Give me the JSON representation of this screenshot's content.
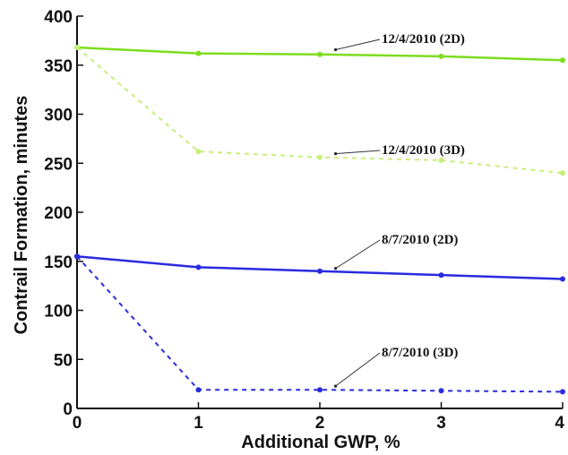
{
  "chart_data": {
    "type": "line",
    "title": "",
    "xlabel": "Additional GWP, %",
    "ylabel": "Contrail Formation, minutes",
    "xlim": [
      0,
      4
    ],
    "ylim": [
      0,
      400
    ],
    "x_ticks": [
      "0",
      "1",
      "2",
      "3",
      "4"
    ],
    "y_ticks": [
      "0",
      "50",
      "100",
      "150",
      "200",
      "250",
      "300",
      "350",
      "400"
    ],
    "grid": false,
    "legend": "none",
    "series": [
      {
        "name": "12/4/2010 (2D)",
        "color": "#7ddc1f",
        "style": "solid",
        "x": [
          0,
          1,
          2,
          3,
          4
        ],
        "y": [
          368,
          362,
          361,
          359,
          355
        ]
      },
      {
        "name": "12/4/2010 (3D)",
        "color": "#c6ef7a",
        "style": "dashed",
        "x": [
          0,
          1,
          2,
          3,
          4
        ],
        "y": [
          368,
          262,
          256,
          253,
          240
        ]
      },
      {
        "name": "8/7/2010 (2D)",
        "color": "#2a2ae0",
        "style": "solid",
        "x": [
          0,
          1,
          2,
          3,
          4
        ],
        "y": [
          155,
          144,
          140,
          136,
          132
        ]
      },
      {
        "name": "8/7/2010 (3D)",
        "color": "#2a2ae0",
        "style": "dashed",
        "x": [
          0,
          1,
          2,
          3,
          4
        ],
        "y": [
          155,
          19,
          19,
          18,
          17
        ]
      }
    ],
    "annotations": [
      {
        "text": "12/4/2010 (2D)",
        "series": 0,
        "x": 2.1,
        "y": 363
      },
      {
        "text": "12/4/2010 (3D)",
        "series": 1,
        "x": 2.1,
        "y": 257
      },
      {
        "text": "8/7/2010 (2D)",
        "series": 2,
        "x": 2.1,
        "y": 140
      },
      {
        "text": "8/7/2010 (3D)",
        "series": 3,
        "x": 2.1,
        "y": 20
      }
    ]
  }
}
